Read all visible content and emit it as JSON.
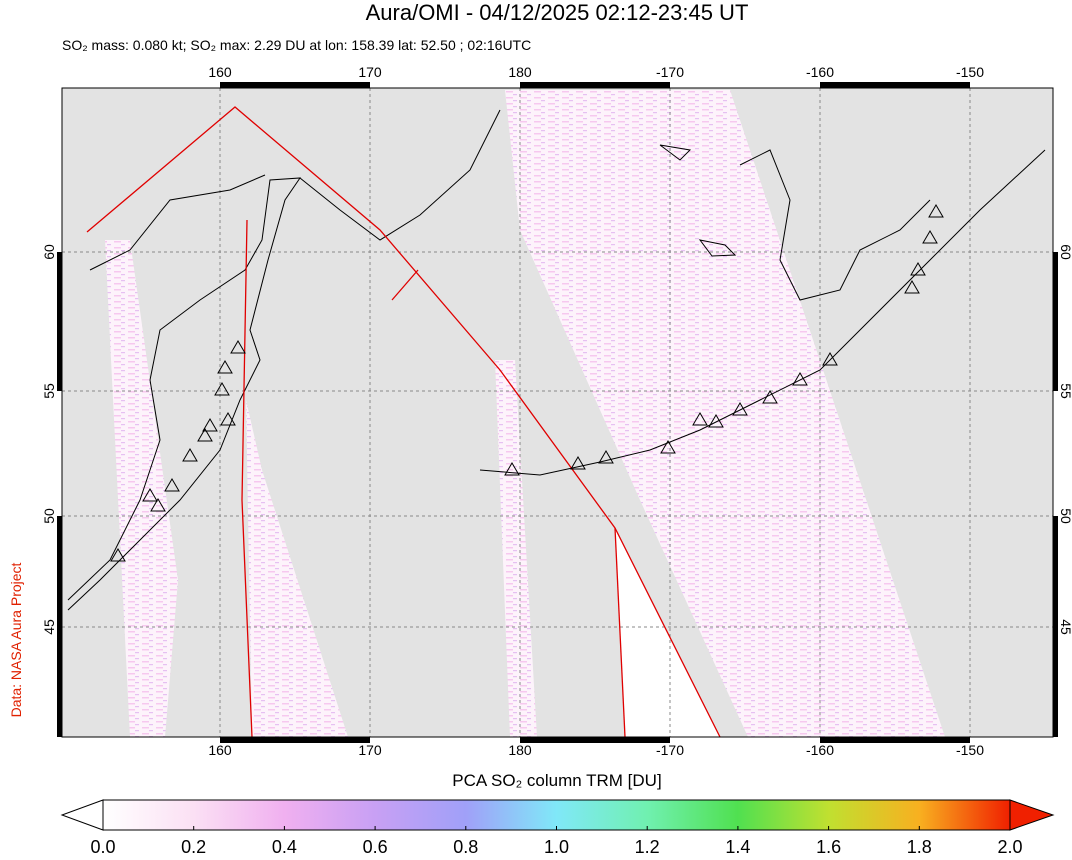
{
  "title": "Aura/OMI - 04/12/2025 02:12-23:45 UT",
  "subtitle": "SO₂ mass: 0.080 kt; SO₂ max: 2.29 DU at lon: 158.39 lat: 52.50 ; 02:16UTC",
  "credit": "Data: NASA Aura Project",
  "map": {
    "lon_labels": [
      "160",
      "170",
      "180",
      "-170",
      "-160",
      "-150"
    ],
    "lat_labels": [
      "60",
      "55",
      "50",
      "45"
    ]
  },
  "colorbar": {
    "label": "PCA SO₂ column TRM [DU]",
    "tick_labels": [
      "0.0",
      "0.2",
      "0.4",
      "0.6",
      "0.8",
      "1.0",
      "1.2",
      "1.4",
      "1.6",
      "1.8",
      "2.0"
    ]
  }
}
